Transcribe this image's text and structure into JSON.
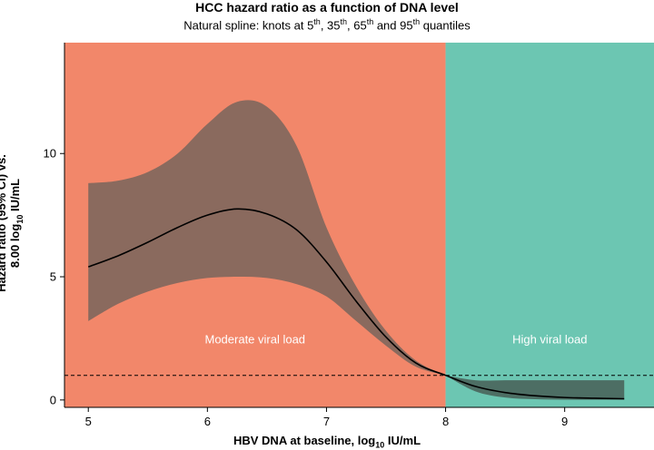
{
  "chart_data": {
    "type": "line",
    "title": "HCC hazard ratio as a function of DNA level",
    "subtitle": {
      "prefix": "Natural spline: knots at 5",
      "sup1": "th",
      "mid1": ", 35",
      "sup2": "th",
      "mid2": ", 65",
      "sup3": "th",
      "mid3": " and 95",
      "sup4": "th",
      "suffix": " quantiles"
    },
    "ylabel": {
      "line1": "Hazard ratio (95% CI) vs.",
      "line2_prefix": "8.00 log",
      "line2_sub": "10",
      "line2_suffix": " IU/mL"
    },
    "xlabel": {
      "prefix": "HBV DNA at baseline, log",
      "sub": "10",
      "suffix": " IU/mL"
    },
    "xlim": [
      4.8,
      9.75
    ],
    "ylim": [
      -0.3,
      14.5
    ],
    "xticks": [
      5,
      6,
      7,
      8,
      9
    ],
    "yticks": [
      0,
      5,
      10
    ],
    "regions": [
      {
        "name": "Moderate viral load",
        "x_start": 4.8,
        "x_end": 8.0,
        "color": "#f2876a"
      },
      {
        "name": "High viral load",
        "x_start": 8.0,
        "x_end": 9.75,
        "color": "#6cc6b2"
      }
    ],
    "reference_line": {
      "y": 1.0,
      "style": "dashed"
    },
    "series": [
      {
        "name": "Hazard ratio",
        "x": [
          5.0,
          5.25,
          5.5,
          5.75,
          6.0,
          6.25,
          6.5,
          6.75,
          7.0,
          7.25,
          7.5,
          7.75,
          8.0,
          8.25,
          8.5,
          8.75,
          9.0,
          9.25,
          9.5
        ],
        "y": [
          5.4,
          5.85,
          6.4,
          7.0,
          7.5,
          7.75,
          7.55,
          6.9,
          5.6,
          4.0,
          2.55,
          1.5,
          1.0,
          0.55,
          0.3,
          0.17,
          0.1,
          0.07,
          0.05
        ]
      },
      {
        "name": "95% CI upper",
        "x": [
          5.0,
          5.25,
          5.5,
          5.75,
          6.0,
          6.25,
          6.5,
          6.75,
          7.0,
          7.25,
          7.5,
          7.75,
          8.0,
          8.25,
          8.5,
          8.75,
          9.0,
          9.25,
          9.5
        ],
        "y": [
          8.8,
          8.9,
          9.25,
          10.0,
          11.2,
          12.1,
          11.9,
          10.3,
          7.0,
          4.6,
          2.8,
          1.6,
          1.0,
          0.8,
          0.8,
          0.8,
          0.8,
          0.8,
          0.8
        ]
      },
      {
        "name": "95% CI lower",
        "x": [
          5.0,
          5.25,
          5.5,
          5.75,
          6.0,
          6.25,
          6.5,
          6.75,
          7.0,
          7.25,
          7.5,
          7.75,
          8.0,
          8.25,
          8.5,
          8.75,
          9.0,
          9.25,
          9.5
        ],
        "y": [
          3.2,
          3.9,
          4.4,
          4.75,
          4.95,
          5.0,
          4.95,
          4.7,
          4.2,
          3.2,
          2.2,
          1.35,
          1.0,
          0.35,
          0.1,
          0.03,
          0.01,
          0.01,
          0.01
        ]
      }
    ],
    "colors": {
      "ci_band": "#8a6a5e",
      "ci_band_right": "#4d6e64",
      "line": "#000000",
      "region_label": "#ffffff"
    }
  }
}
